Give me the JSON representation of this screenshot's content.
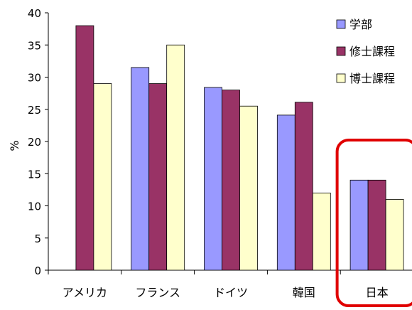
{
  "chart_data": {
    "type": "bar",
    "title": "",
    "xlabel": "",
    "ylabel": "%",
    "ylim": [
      0,
      40
    ],
    "yticks": [
      0,
      5,
      10,
      15,
      20,
      25,
      30,
      35,
      40
    ],
    "grid": false,
    "legend_position": "top-right",
    "categories": [
      "アメリカ",
      "フランス",
      "ドイツ",
      "韓国",
      "日本"
    ],
    "series": [
      {
        "name": "学部",
        "color": "#9999FF",
        "values": [
          null,
          31.5,
          28.4,
          24.1,
          14.0
        ]
      },
      {
        "name": "修士課程",
        "color": "#993366",
        "values": [
          38.0,
          29.0,
          28.0,
          26.1,
          14.0
        ]
      },
      {
        "name": "博士課程",
        "color": "#FFFFCC",
        "values": [
          29.0,
          35.0,
          25.5,
          12.0,
          11.0
        ]
      }
    ],
    "highlight": {
      "category": "日本",
      "color": "#E00000"
    }
  }
}
